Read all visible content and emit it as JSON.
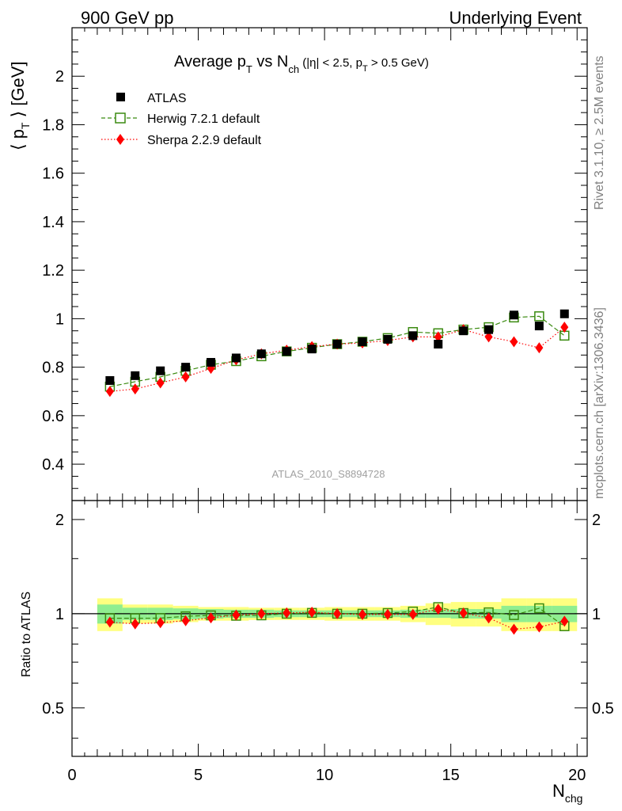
{
  "header": {
    "left": "900 GeV pp",
    "right": "Underlying Event"
  },
  "plot_title": {
    "main": "Average p",
    "sub1": "T",
    "mid": " vs N",
    "sub2": "ch",
    "cuts": " (|η| < 2.5, p",
    "sub3": "T",
    "cuts_end": " > 0.5 GeV)"
  },
  "side_labels": {
    "rivet": "Rivet 3.1.10, ≥ 2.5M events",
    "mcplots": "mcplots.cern.ch [arXiv:1306.3436]"
  },
  "analysis_id": "ATLAS_2010_S8894728",
  "axes": {
    "ylabel_main": {
      "pre": "⟨ p",
      "sub": "T",
      "post": " ⟩ [GeV]"
    },
    "ylabel_ratio": "Ratio to ATLAS",
    "xlabel": {
      "main": "N",
      "sub": "chg"
    }
  },
  "colors": {
    "atlas": "#000000",
    "herwig": "#3a8a10",
    "sherpa": "#ff0000",
    "band_inner": "#90ee90",
    "band_outer": "#ffff80"
  },
  "chart_data": [
    {
      "type": "scatter",
      "panel": "main",
      "xlim": [
        0,
        20.4
      ],
      "ylim": [
        0.25,
        2.2
      ],
      "x_ticks": [
        0,
        5,
        10,
        15,
        20
      ],
      "y_ticks": [
        0.4,
        0.6,
        0.8,
        1,
        1.2,
        1.4,
        1.6,
        1.8,
        2
      ],
      "y_tick_labels": [
        "0.4",
        "0.6",
        "0.8",
        "1",
        "1.2",
        "1.4",
        "1.6",
        "1.8",
        "2"
      ],
      "x": [
        1.5,
        2.5,
        3.5,
        4.5,
        5.5,
        6.5,
        7.5,
        8.5,
        9.5,
        10.5,
        11.5,
        12.5,
        13.5,
        14.5,
        15.5,
        16.5,
        17.5,
        18.5,
        19.5
      ],
      "series": [
        {
          "name": "ATLAS",
          "marker": "filled-square",
          "values": [
            0.745,
            0.765,
            0.785,
            0.8,
            0.82,
            0.838,
            0.855,
            0.865,
            0.875,
            0.895,
            0.905,
            0.915,
            0.93,
            0.895,
            0.95,
            0.955,
            1.015,
            0.97,
            1.02
          ]
        },
        {
          "name": "Herwig 7.2.1 default",
          "marker": "open-square",
          "line": "dashed",
          "values": [
            0.72,
            0.74,
            0.76,
            0.785,
            0.81,
            0.825,
            0.845,
            0.865,
            0.88,
            0.895,
            0.905,
            0.92,
            0.945,
            0.94,
            0.955,
            0.965,
            1.005,
            1.01,
            0.93
          ]
        },
        {
          "name": "Sherpa 2.2.9 default",
          "marker": "filled-diamond",
          "line": "dotted",
          "values": [
            0.7,
            0.71,
            0.735,
            0.76,
            0.795,
            0.83,
            0.855,
            0.87,
            0.885,
            0.895,
            0.9,
            0.91,
            0.925,
            0.925,
            0.955,
            0.925,
            0.905,
            0.88,
            0.965
          ]
        }
      ],
      "legend": "top-left"
    },
    {
      "type": "scatter",
      "panel": "ratio",
      "ylabel": "Ratio to ATLAS",
      "xlabel": "Nchg",
      "xlim": [
        0,
        20.4
      ],
      "ylim": [
        0.35,
        2.3
      ],
      "y_scale": "log",
      "x_ticks": [
        0,
        5,
        10,
        15,
        20
      ],
      "x_tick_labels": [
        "0",
        "5",
        "10",
        "15",
        "20"
      ],
      "y_ticks": [
        0.5,
        1,
        2
      ],
      "y_tick_labels": [
        "0.5",
        "1",
        "2"
      ],
      "x": [
        1.5,
        2.5,
        3.5,
        4.5,
        5.5,
        6.5,
        7.5,
        8.5,
        9.5,
        10.5,
        11.5,
        12.5,
        13.5,
        14.5,
        15.5,
        16.5,
        17.5,
        18.5,
        19.5
      ],
      "band_edges": [
        1,
        2,
        3,
        4,
        5,
        6,
        7,
        8,
        9,
        10,
        11,
        12,
        13,
        14,
        15,
        16,
        17,
        18,
        19,
        20
      ],
      "band_inner": [
        0.07,
        0.045,
        0.045,
        0.04,
        0.035,
        0.03,
        0.03,
        0.025,
        0.025,
        0.025,
        0.025,
        0.025,
        0.03,
        0.03,
        0.035,
        0.035,
        0.06,
        0.06,
        0.06
      ],
      "band_outer": [
        0.12,
        0.07,
        0.07,
        0.06,
        0.05,
        0.05,
        0.045,
        0.045,
        0.045,
        0.05,
        0.05,
        0.05,
        0.06,
        0.08,
        0.09,
        0.09,
        0.12,
        0.12,
        0.12
      ],
      "series": [
        {
          "name": "Herwig 7.2.1 default",
          "marker": "open-square",
          "line": "dashed",
          "values": [
            0.967,
            0.967,
            0.968,
            0.981,
            0.988,
            0.985,
            0.988,
            1.0,
            1.006,
            1.0,
            1.0,
            1.005,
            1.016,
            1.05,
            1.005,
            1.01,
            0.99,
            1.041,
            0.912
          ]
        },
        {
          "name": "Sherpa 2.2.9 default",
          "marker": "filled-diamond",
          "line": "dotted",
          "values": [
            0.94,
            0.928,
            0.936,
            0.95,
            0.97,
            0.99,
            1.0,
            1.006,
            1.011,
            1.0,
            0.994,
            0.995,
            0.995,
            1.034,
            1.005,
            0.969,
            0.892,
            0.907,
            0.946
          ]
        }
      ]
    }
  ]
}
